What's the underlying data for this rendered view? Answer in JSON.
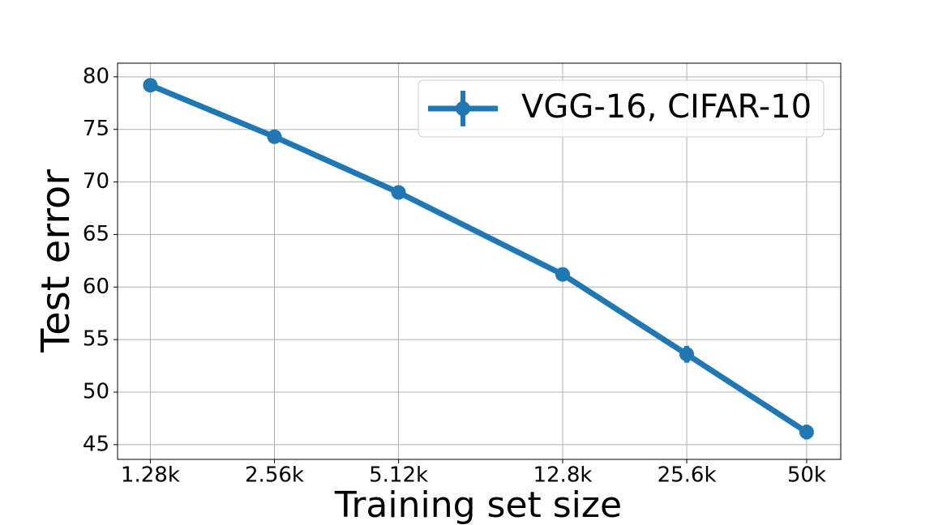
{
  "chart_data": {
    "type": "line",
    "xlabel": "Training set size",
    "ylabel": "Test error",
    "x": [
      1280,
      2560,
      5120,
      12800,
      25600,
      50000
    ],
    "xscale": "log",
    "series": [
      {
        "name": "VGG-16, CIFAR-10",
        "color": "#1f77b4",
        "values": [
          79.2,
          74.3,
          69.0,
          61.2,
          53.6,
          46.2
        ],
        "errors": [
          0.3,
          0.3,
          0.3,
          0.5,
          0.8,
          0.7
        ]
      }
    ],
    "xlim": [
      1066,
      60500
    ],
    "ylim": [
      43.6,
      81.3
    ],
    "xticks": [
      {
        "value": 1280,
        "label": "1.28k"
      },
      {
        "value": 2560,
        "label": "2.56k"
      },
      {
        "value": 5120,
        "label": "5.12k"
      },
      {
        "value": 12800,
        "label": "12.8k"
      },
      {
        "value": 25600,
        "label": "25.6k"
      },
      {
        "value": 50000,
        "label": "50k"
      }
    ],
    "yticks": [
      45,
      50,
      55,
      60,
      65,
      70,
      75,
      80
    ],
    "grid": true,
    "legend": "upper right"
  }
}
